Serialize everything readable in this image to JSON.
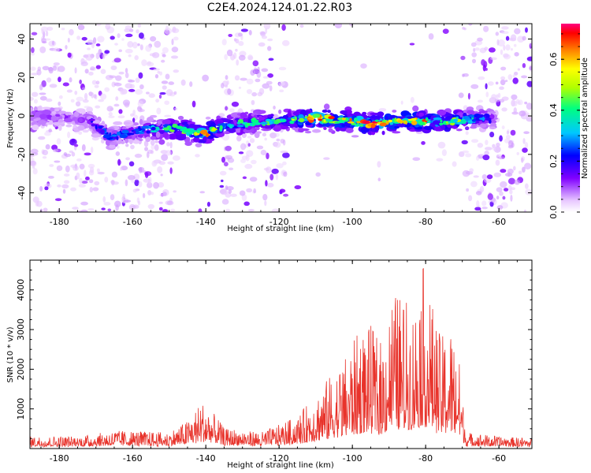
{
  "figure": {
    "title": "C2E4.2024.124.01.22.R03"
  },
  "chart_data": [
    {
      "type": "heatmap",
      "title": "C2E4.2024.124.01.22.R03",
      "xlabel": "Height of straight line (km)",
      "ylabel": "Frequency (Hz)",
      "xlim": [
        -188,
        -51
      ],
      "ylim": [
        -50,
        48
      ],
      "xticks": [
        -180,
        -160,
        -140,
        -120,
        -100,
        -80,
        -60
      ],
      "yticks": [
        -40,
        -20,
        0,
        20,
        40
      ],
      "colorbar": {
        "label": "Normalized spectral amplitude",
        "range": [
          0,
          0.74
        ],
        "ticks": [
          0.0,
          0.2,
          0.4,
          0.6
        ]
      },
      "ridge_profile": {
        "x": [
          -188,
          -180,
          -172,
          -166,
          -160,
          -155,
          -150,
          -145,
          -140,
          -136,
          -130,
          -125,
          -120,
          -115,
          -110,
          -105,
          -100,
          -95,
          -90,
          -85,
          -80,
          -75,
          -70,
          -65,
          -61
        ],
        "center_y": [
          0,
          -1,
          -2,
          -11,
          -8,
          -7,
          -6,
          -8,
          -9,
          -6,
          -4,
          -3,
          -3,
          -2,
          -1,
          -2,
          -3,
          -4,
          -3,
          -2,
          -3,
          -3,
          -2,
          -1,
          -2
        ],
        "peak_amplitude": [
          0.25,
          0.22,
          0.2,
          0.3,
          0.28,
          0.35,
          0.45,
          0.55,
          0.65,
          0.45,
          0.45,
          0.4,
          0.5,
          0.55,
          0.7,
          0.65,
          0.7,
          0.72,
          0.65,
          0.6,
          0.65,
          0.6,
          0.5,
          0.3,
          0.25
        ]
      }
    },
    {
      "type": "line",
      "xlabel": "Height of straight line (km)",
      "ylabel": "SNR (10 * v/v)",
      "xlim": [
        -188,
        -51
      ],
      "ylim": [
        0,
        4750
      ],
      "xticks": [
        -180,
        -160,
        -140,
        -120,
        -100,
        -80,
        -60
      ],
      "yticks": [
        1000,
        2000,
        3000,
        4000
      ],
      "color": "#e8332b",
      "envelope": {
        "x": [
          -188,
          -175,
          -165,
          -150,
          -145,
          -141,
          -137,
          -135,
          -125,
          -115,
          -108,
          -102,
          -98,
          -95,
          -92,
          -89,
          -86,
          -83,
          -81,
          -79,
          -76,
          -73,
          -71,
          -69,
          -60,
          -51
        ],
        "y": [
          300,
          300,
          450,
          400,
          700,
          1200,
          800,
          500,
          400,
          800,
          1600,
          2300,
          3000,
          3100,
          2700,
          4000,
          3800,
          3600,
          4700,
          4000,
          2800,
          3100,
          2400,
          400,
          300,
          250
        ]
      }
    }
  ]
}
